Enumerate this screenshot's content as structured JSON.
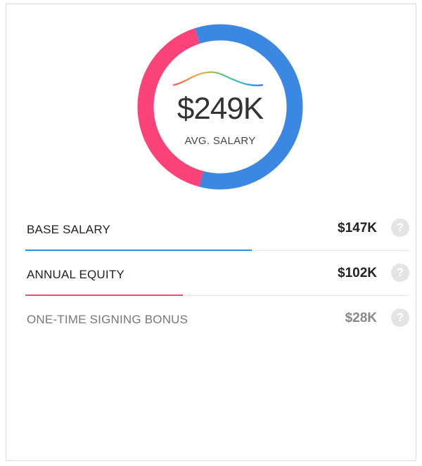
{
  "summary": {
    "amount": "$249K",
    "label": "AVG. SALARY"
  },
  "colors": {
    "blue": "#3b88e3",
    "pink": "#fb4379",
    "bar_blue": "#2a8fdc",
    "bar_pink": "#ee4b7a"
  },
  "breakdown": [
    {
      "label": "BASE SALARY",
      "value": "$147K",
      "amount_k": 147,
      "bar_fraction": 0.59,
      "bar_color": "#2a8fdc",
      "muted": false,
      "help_icon": "question-circle-icon"
    },
    {
      "label": "ANNUAL EQUITY",
      "value": "$102K",
      "amount_k": 102,
      "bar_fraction": 0.41,
      "bar_color": "#ee4b7a",
      "muted": false,
      "help_icon": "question-circle-icon"
    },
    {
      "label": "ONE-TIME SIGNING BONUS",
      "value": "$28K",
      "amount_k": 28,
      "bar_fraction": 0,
      "bar_color": "",
      "muted": true,
      "help_icon": "question-circle-icon"
    }
  ],
  "help_glyph": "?"
}
